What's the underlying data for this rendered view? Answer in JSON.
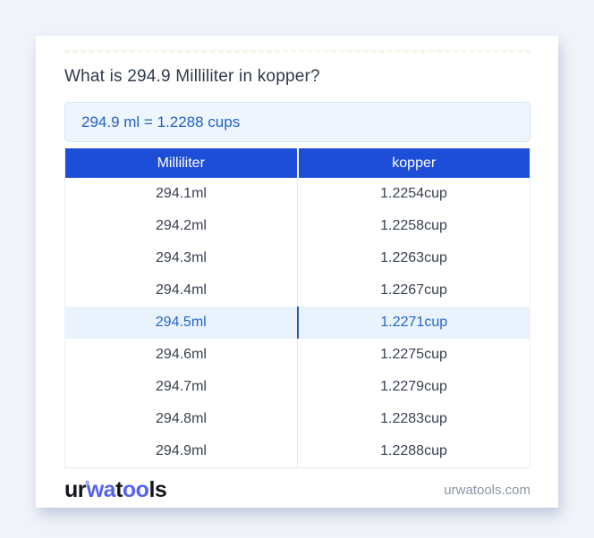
{
  "header": {
    "title": "What is 294.9 Milliliter in kopper?",
    "result": "294.9 ml = 1.2288 cups"
  },
  "table": {
    "headers": [
      "Milliliter",
      "kopper"
    ],
    "rows": [
      [
        "294.1ml",
        "1.2254cup"
      ],
      [
        "294.2ml",
        "1.2258cup"
      ],
      [
        "294.3ml",
        "1.2263cup"
      ],
      [
        "294.4ml",
        "1.2267cup"
      ],
      [
        "294.5ml",
        "1.2271cup"
      ],
      [
        "294.6ml",
        "1.2275cup"
      ],
      [
        "294.7ml",
        "1.2279cup"
      ],
      [
        "294.8ml",
        "1.2283cup"
      ],
      [
        "294.9ml",
        "1.2288cup"
      ]
    ],
    "highlighted_row_index": 4
  },
  "footer": {
    "logo_parts": {
      "ur": "ur",
      "ring": "°",
      "wa": "wa",
      "t": "t",
      "oo": "oo",
      "ls": "ls"
    },
    "domain": "urwatools.com"
  },
  "colors": {
    "page_background": "#f1f4f9",
    "card_background": "#ffffff",
    "header_blue": "#1d4ed8",
    "result_box_background": "#eef5fd",
    "result_box_border": "#d7e5f5",
    "result_text_blue": "#2263c3",
    "highlight_row_background": "#e9f2fd",
    "highlight_text_blue": "#2667c9",
    "row_text": "#39414f",
    "logo_blue": "#5563f0",
    "domain_gray": "#8d95a5"
  }
}
